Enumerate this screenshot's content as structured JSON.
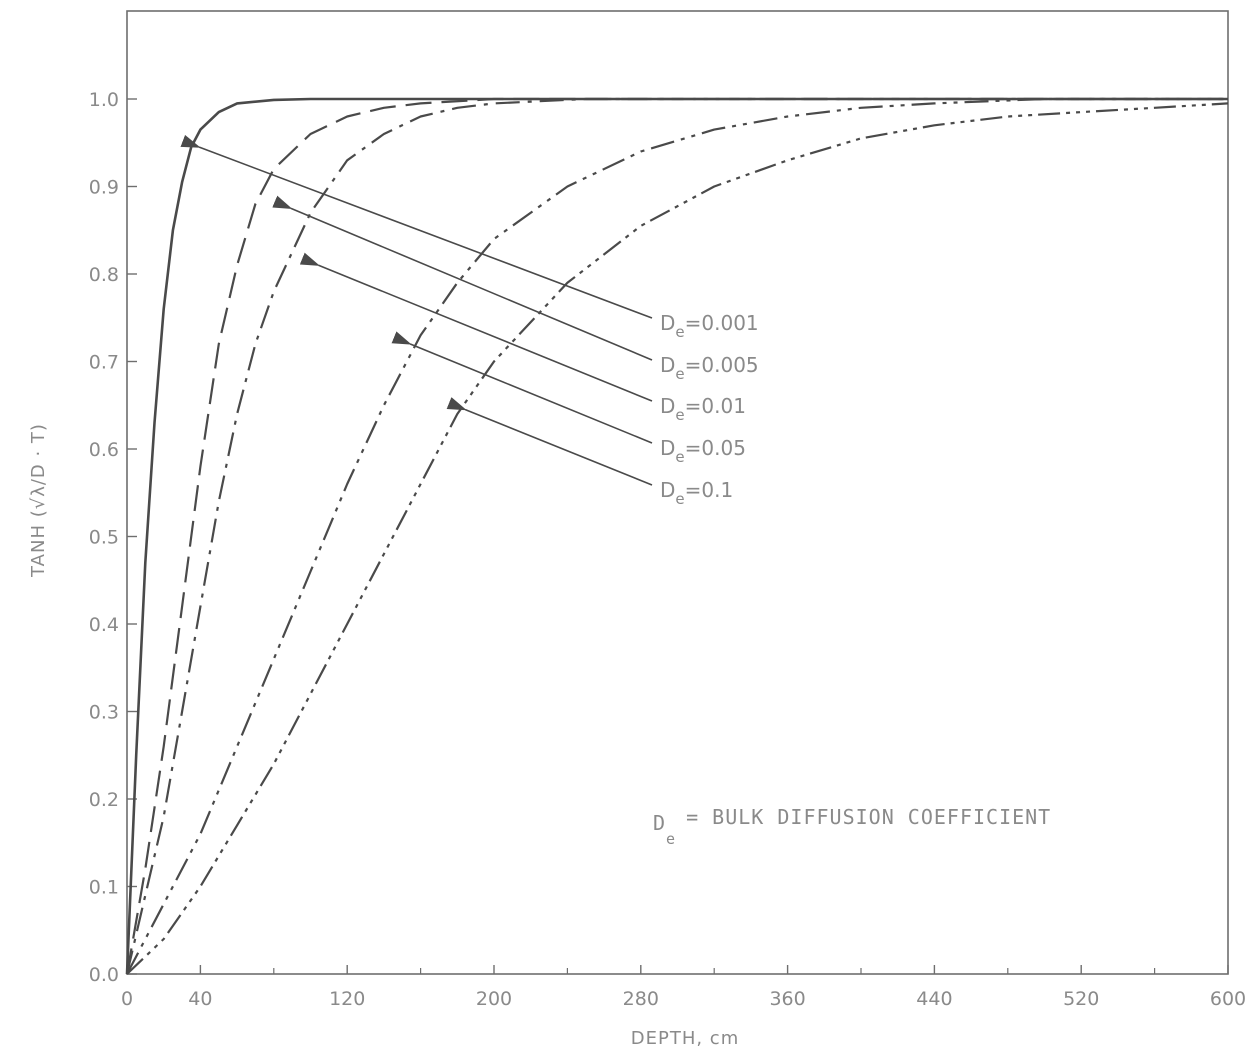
{
  "chart_data": {
    "type": "line",
    "title": "",
    "xlabel": "DEPTH, cm",
    "ylabel_prefix": "TANH (",
    "ylabel_radical": "√λ/D",
    "ylabel_suffix": " · T)",
    "xlim": [
      0,
      600
    ],
    "ylim": [
      0,
      1.0
    ],
    "x_ticks": [
      "0",
      "40",
      "120",
      "200",
      "280",
      "360",
      "440",
      "520",
      "600"
    ],
    "y_ticks": [
      "0.0",
      "0.1",
      "0.2",
      "0.3",
      "0.4",
      "0.5",
      "0.6",
      "0.7",
      "0.8",
      "0.9",
      "1.0"
    ],
    "grid": false,
    "series": [
      {
        "name": "Dₑ=0.001",
        "label_main": "D",
        "label_sub": "e",
        "label_value": "=0.001",
        "style": "solid",
        "x": [
          0,
          5,
          10,
          15,
          20,
          25,
          30,
          35,
          40,
          50,
          60,
          80,
          100,
          600
        ],
        "y": [
          0,
          0.25,
          0.47,
          0.63,
          0.76,
          0.85,
          0.905,
          0.945,
          0.965,
          0.985,
          0.995,
          0.999,
          1.0,
          1.0
        ]
      },
      {
        "name": "Dₑ=0.005",
        "label_main": "D",
        "label_sub": "e",
        "label_value": "=0.005",
        "style": "dashed",
        "x": [
          0,
          10,
          20,
          30,
          40,
          50,
          60,
          70,
          80,
          100,
          120,
          140,
          160,
          200,
          600
        ],
        "y": [
          0,
          0.12,
          0.26,
          0.42,
          0.58,
          0.72,
          0.81,
          0.88,
          0.92,
          0.96,
          0.98,
          0.99,
          0.995,
          1.0,
          1.0
        ]
      },
      {
        "name": "Dₑ=0.01",
        "label_main": "D",
        "label_sub": "e",
        "label_value": "=0.01",
        "style": "dashdot",
        "x": [
          0,
          10,
          20,
          30,
          40,
          50,
          60,
          70,
          80,
          100,
          120,
          140,
          160,
          180,
          200,
          250,
          600
        ],
        "y": [
          0,
          0.09,
          0.18,
          0.3,
          0.42,
          0.54,
          0.64,
          0.72,
          0.78,
          0.87,
          0.93,
          0.96,
          0.98,
          0.99,
          0.995,
          1.0,
          1.0
        ]
      },
      {
        "name": "Dₑ=0.05",
        "label_main": "D",
        "label_sub": "e",
        "label_value": "=0.05",
        "style": "dashdotdot",
        "x": [
          0,
          20,
          40,
          60,
          80,
          100,
          120,
          140,
          160,
          180,
          200,
          240,
          280,
          320,
          360,
          400,
          440,
          500,
          600
        ],
        "y": [
          0,
          0.08,
          0.16,
          0.26,
          0.36,
          0.46,
          0.56,
          0.65,
          0.73,
          0.79,
          0.84,
          0.9,
          0.94,
          0.965,
          0.98,
          0.99,
          0.995,
          1.0,
          1.0
        ]
      },
      {
        "name": "Dₑ=0.1",
        "label_main": "D",
        "label_sub": "e",
        "label_value": "=0.1",
        "style": "dashdotdotdot",
        "x": [
          0,
          20,
          40,
          60,
          80,
          100,
          120,
          140,
          160,
          180,
          200,
          240,
          280,
          320,
          360,
          400,
          440,
          480,
          520,
          560,
          600
        ],
        "y": [
          0,
          0.04,
          0.1,
          0.17,
          0.24,
          0.32,
          0.4,
          0.48,
          0.56,
          0.64,
          0.7,
          0.79,
          0.855,
          0.9,
          0.93,
          0.955,
          0.97,
          0.98,
          0.985,
          0.99,
          0.995
        ]
      }
    ],
    "annotation_main": "D",
    "annotation_sub": "e",
    "annotation_text": "= BULK DIFFUSION COEFFICIENT",
    "legend_placement": "right-center with arrows pointing to curves"
  }
}
